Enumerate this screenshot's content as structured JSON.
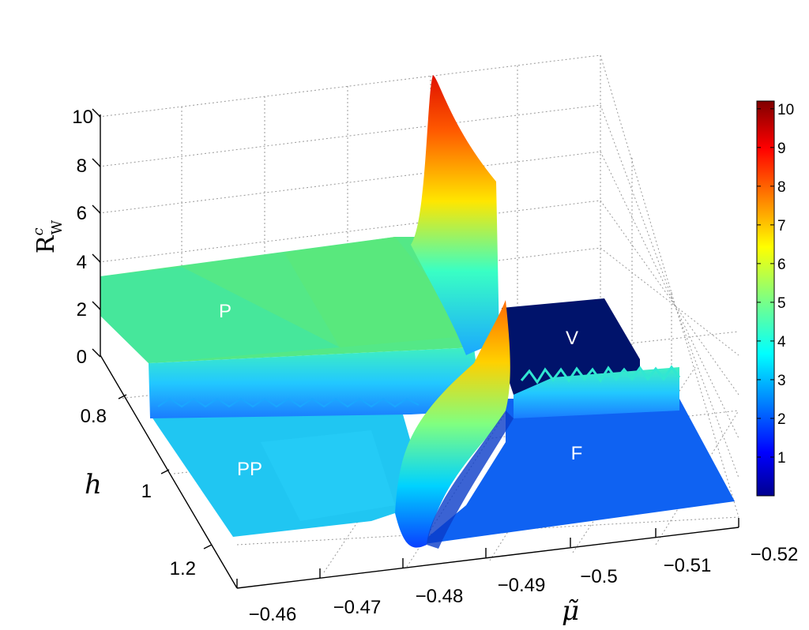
{
  "chart_data": {
    "type": "surface",
    "zlabel_main": "R",
    "zlabel_sup": "c",
    "zlabel_sub": "W",
    "xlabel": "μ̃",
    "ylabel": "h",
    "xlim": [
      -0.52,
      -0.46
    ],
    "ylim": [
      0.7,
      1.25
    ],
    "zlim": [
      0,
      10
    ],
    "x_ticks": [
      "−0.46",
      "−0.47",
      "−0.48",
      "−0.49",
      "−0.5",
      "−0.51",
      "−0.52"
    ],
    "y_ticks": [
      "0.8",
      "1",
      "1.2"
    ],
    "z_ticks": [
      "0",
      "2",
      "4",
      "6",
      "8",
      "10"
    ],
    "colorbar_ticks": [
      "1",
      "2",
      "3",
      "4",
      "5",
      "6",
      "7",
      "8",
      "9",
      "10"
    ],
    "colorbar_range": [
      0,
      10.2
    ],
    "colormap": "jet",
    "regions": [
      {
        "label": "P",
        "value": 3.2
      },
      {
        "label": "PP",
        "value": 2.4
      },
      {
        "label": "V",
        "value": 0.0
      },
      {
        "label": "F",
        "value": 1.3
      }
    ],
    "peak": {
      "x": -0.485,
      "y": 0.7,
      "value": 10.2
    },
    "grid": true
  }
}
